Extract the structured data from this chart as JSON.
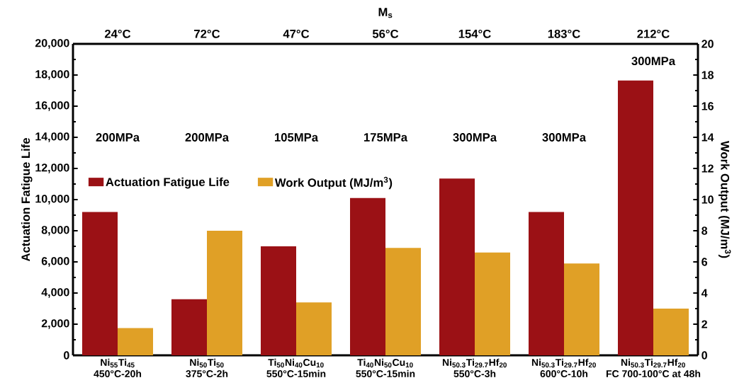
{
  "chart_data": {
    "type": "bar",
    "categories": [
      "Ni$_{55}$Ti$_{45}$\n450°C-20h",
      "Ni$_{50}$Ti$_{50}$\n375°C-2h",
      "Ti$_{50}$Ni$_{40}$Cu$_{10}$\n550°C-15min",
      "Ti$_{40}$Ni$_{50}$Cu$_{10}$\n550°C-15min",
      "Ni$_{50.3}$Ti$_{29.7}$Hf$_{20}$\n550°C-3h",
      "Ni$_{50.3}$Ti$_{29.7}$Hf$_{20}$\n600°C-10h",
      "Ni$_{50.3}$Ti$_{29.7}$Hf$_{20}$\nFC 700-100°C at 48h"
    ],
    "series": [
      {
        "name": "Actuation Fatigue Life",
        "color": "#9b1115",
        "values": [
          9200,
          3600,
          7000,
          10100,
          11350,
          9200,
          17650
        ]
      },
      {
        "name": "Work Output (MJ/m$^{3}$)",
        "color": "#e0a026",
        "axis": "y2",
        "values": [
          1.75,
          8.0,
          3.4,
          6.9,
          6.6,
          5.9,
          3.0
        ]
      }
    ],
    "ylabel": "Actuation Fatigue Life",
    "y2label": "Work Output  (MJ/m$^{3}$)",
    "x2label": "M$_{s}$",
    "ylim": [
      0,
      20000
    ],
    "yticks": [
      {
        "value": 0,
        "label": "0"
      },
      {
        "value": 2000,
        "label": "2,000"
      },
      {
        "value": 4000,
        "label": "4,000"
      },
      {
        "value": 6000,
        "label": "6,000"
      },
      {
        "value": 8000,
        "label": "8,000"
      },
      {
        "value": 10000,
        "label": "10,000"
      },
      {
        "value": 12000,
        "label": "12,000"
      },
      {
        "value": 14000,
        "label": "14,000"
      },
      {
        "value": 16000,
        "label": "16,000"
      },
      {
        "value": 18000,
        "label": "18,000"
      },
      {
        "value": 20000,
        "label": "20,000"
      }
    ],
    "y2lim": [
      0,
      20
    ],
    "y2ticks": [
      0,
      2,
      4,
      6,
      8,
      10,
      12,
      14,
      16,
      18,
      20
    ],
    "annotations": [
      "24°C",
      "72°C",
      "47°C",
      "56°C",
      "154°C",
      "183°C",
      "212°C",
      "200MPa",
      "200MPa",
      "105MPa",
      "175MPa",
      "300MPa",
      "300MPa",
      "300MPa"
    ],
    "legend": "left",
    "grid": false
  }
}
